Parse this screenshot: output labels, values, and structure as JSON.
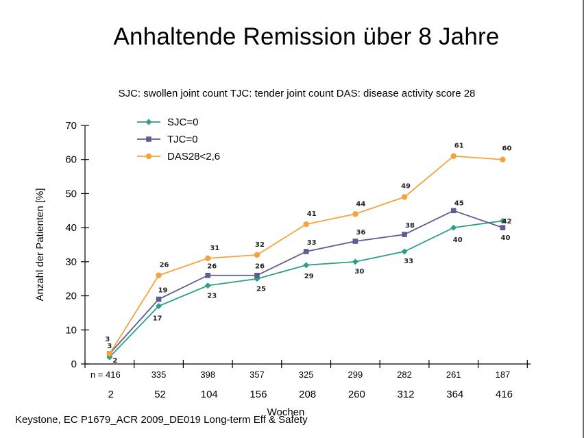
{
  "title": "Anhaltende Remission über 8 Jahre",
  "subtitle": "SJC: swollen joint count  TJC: tender joint count  DAS: disease activity score 28",
  "footer": "Keystone, EC P1679_ACR 2009_DE019 Long-term Eff & Safety",
  "chart_data": {
    "type": "line",
    "title": "Anhaltende Remission über 8 Jahre",
    "xlabel": "Wochen",
    "ylabel": "Anzahl der Patienten [%]",
    "ylim": [
      0,
      70
    ],
    "yticks": [
      0,
      10,
      20,
      30,
      40,
      50,
      60,
      70
    ],
    "x": [
      2,
      52,
      104,
      156,
      208,
      260,
      312,
      364,
      416
    ],
    "n_prefix": "n = ",
    "n": [
      416,
      335,
      398,
      357,
      325,
      299,
      282,
      261,
      187
    ],
    "grid": false,
    "legend_position": "top-left",
    "series": [
      {
        "name": "SJC=0",
        "color": "#2e9e84",
        "marker": "diamond",
        "values": [
          2,
          17,
          23,
          25,
          29,
          30,
          33,
          40,
          42
        ],
        "labels": [
          "2",
          "17",
          "23",
          "25",
          "29",
          "30",
          "33",
          "40",
          "42"
        ]
      },
      {
        "name": "TJC=0",
        "color": "#5a5e94",
        "marker": "square",
        "values": [
          3,
          19,
          26,
          26,
          33,
          36,
          38,
          45,
          40
        ],
        "labels": [
          "3",
          "19",
          "26",
          "26",
          "33",
          "36",
          "38",
          "45",
          "40"
        ]
      },
      {
        "name": "DAS28<2,6",
        "color": "#f5a33a",
        "marker": "circle",
        "values": [
          3,
          26,
          31,
          32,
          41,
          44,
          49,
          61,
          60
        ],
        "labels": [
          "3",
          "26",
          "31",
          "32",
          "41",
          "44",
          "49",
          "61",
          "60"
        ]
      }
    ]
  }
}
